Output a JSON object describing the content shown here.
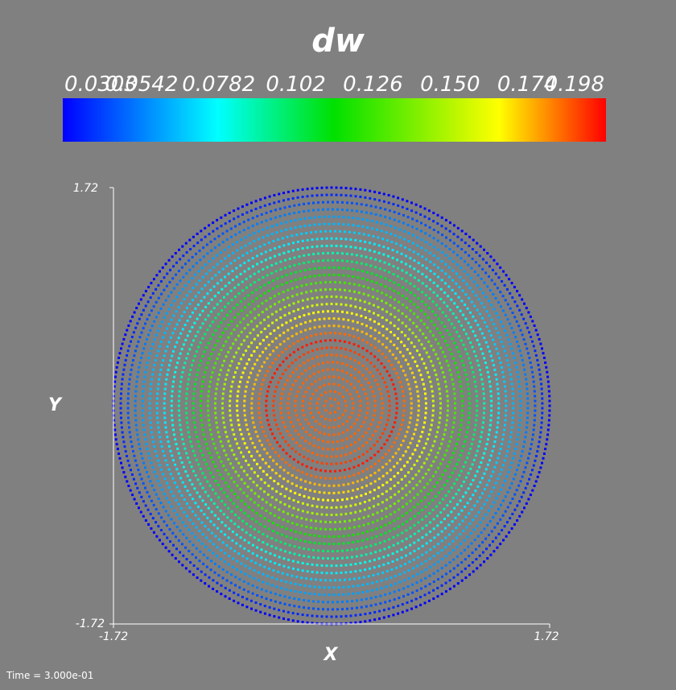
{
  "chart_data": {
    "type": "scatter",
    "variable": "dw",
    "title": "dw",
    "xlabel": "X",
    "ylabel": "Y",
    "xlim": [
      -1.72,
      1.72
    ],
    "ylim": [
      -1.72,
      1.72
    ],
    "x_tick_labels": [
      "-1.72",
      "1.72"
    ],
    "y_tick_labels": [
      "-1.72",
      "1.72"
    ],
    "colorbar": {
      "range": [
        0.0303,
        0.198
      ],
      "tick_labels": [
        "0.0303",
        "0.0542",
        "0.0782",
        "0.102",
        "0.126",
        "0.150",
        "0.174",
        "0.198"
      ],
      "colormap_stops": [
        {
          "value": 0.0303,
          "color": "#0000ff"
        },
        {
          "value": 0.0782,
          "color": "#00ffff"
        },
        {
          "value": 0.114,
          "color": "#00e000"
        },
        {
          "value": 0.165,
          "color": "#ffff00"
        },
        {
          "value": 0.198,
          "color": "#ff0000"
        }
      ]
    },
    "radial_profile": [
      {
        "r": 0.0,
        "dw": 0.185
      },
      {
        "r": 0.4,
        "dw": 0.185
      },
      {
        "r": 0.52,
        "dw": 0.195
      },
      {
        "r": 0.62,
        "dw": 0.175
      },
      {
        "r": 0.75,
        "dw": 0.165
      },
      {
        "r": 0.9,
        "dw": 0.14
      },
      {
        "r": 1.05,
        "dw": 0.115
      },
      {
        "r": 1.2,
        "dw": 0.09
      },
      {
        "r": 1.35,
        "dw": 0.07
      },
      {
        "r": 1.5,
        "dw": 0.06
      },
      {
        "r": 1.72,
        "dw": 0.0303
      }
    ],
    "ring_count": 30,
    "outer_ring_radius": 1.72
  },
  "time_label": "Time = 3.000e-01"
}
